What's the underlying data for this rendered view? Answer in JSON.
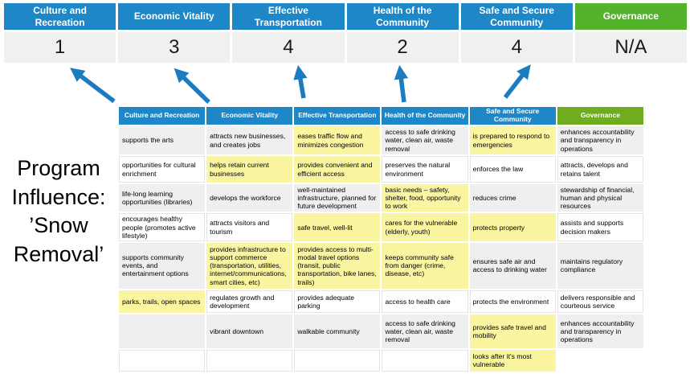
{
  "title": "Program Influence: ’Snow Removal’",
  "colors": {
    "category_blue": "#1e87c7",
    "category_green_large": "#54b22c",
    "category_green_table": "#70ac1f",
    "arrow_blue": "#1d7cc1",
    "highlight_yellow": "#faf5a0",
    "row_gray": "#efefef",
    "score_band_gray": "#f0f0f0"
  },
  "scoreboard": {
    "columns": [
      {
        "label": "Culture and Recreation",
        "score": "1",
        "bg": "#1e87c7"
      },
      {
        "label": "Economic Vitality",
        "score": "3",
        "bg": "#1e87c7"
      },
      {
        "label": "Effective Transportation",
        "score": "4",
        "bg": "#1e87c7"
      },
      {
        "label": "Health of the Community",
        "score": "2",
        "bg": "#1e87c7"
      },
      {
        "label": "Safe and Secure Community",
        "score": "4",
        "bg": "#1e87c7"
      },
      {
        "label": "Governance",
        "score": "N/A",
        "bg": "#54b22c"
      }
    ]
  },
  "matrix": {
    "headers": [
      {
        "label": "Culture and Recreation",
        "bg": "#1e87c7"
      },
      {
        "label": "Economic Vitality",
        "bg": "#1e87c7"
      },
      {
        "label": "Effective Transportation",
        "bg": "#1e87c7"
      },
      {
        "label": "Health of the Community",
        "bg": "#1e87c7"
      },
      {
        "label": "Safe and Secure Community",
        "bg": "#1e87c7"
      },
      {
        "label": "Governance",
        "bg": "#70ac1f"
      }
    ],
    "rows": [
      {
        "cells": [
          {
            "text": "supports the arts"
          },
          {
            "text": "attracts new businesses, and creates jobs"
          },
          {
            "text": "eases traffic flow and minimizes congestion",
            "highlight": true
          },
          {
            "text": "access to safe drinking water, clean air, waste removal"
          },
          {
            "text": "is prepared to respond to emergencies",
            "highlight": true
          },
          {
            "text": "enhances accountability and transparency in operations"
          }
        ]
      },
      {
        "cells": [
          {
            "text": "opportunities for cultural enrichment"
          },
          {
            "text": "helps retain current businesses",
            "highlight": true
          },
          {
            "text": "provides convenient and efficient access",
            "highlight": true
          },
          {
            "text": "preserves the natural environment"
          },
          {
            "text": "enforces the law"
          },
          {
            "text": "attracts, develops and retains talent"
          }
        ]
      },
      {
        "cells": [
          {
            "text": "life-long learning opportunities (libraries)"
          },
          {
            "text": "develops the workforce"
          },
          {
            "text": "well-maintained infrastructure, planned for future development"
          },
          {
            "text": "basic needs – safety, shelter, food, opportunity to work",
            "highlight": true
          },
          {
            "text": "reduces crime"
          },
          {
            "text": "stewardship of financial, human and physical resources"
          }
        ]
      },
      {
        "cells": [
          {
            "text": "encourages healthy people (promotes active lifestyle)"
          },
          {
            "text": "attracts visitors and tourism"
          },
          {
            "text": "safe travel, well-lit",
            "highlight": true
          },
          {
            "text": "cares for the vulnerable (elderly, youth)",
            "highlight": true
          },
          {
            "text": "protects property",
            "highlight": true
          },
          {
            "text": "assists and supports decision makers"
          }
        ]
      },
      {
        "cells": [
          {
            "text": "supports community events, and entertainment options"
          },
          {
            "text": "provides infrastructure to support commerce (transportation, utilities, internet/communications, smart cities, etc)",
            "highlight": true
          },
          {
            "text": "provides access to multi-modal travel options (transit, public transportation, bike lanes, trails)",
            "highlight": true
          },
          {
            "text": "keeps community safe from danger (crime, disease, etc)",
            "highlight": true
          },
          {
            "text": "ensures safe air and access to drinking water"
          },
          {
            "text": "maintains regulatory compliance"
          }
        ]
      },
      {
        "cells": [
          {
            "text": "parks, trails, open spaces",
            "highlight": true
          },
          {
            "text": "regulates growth and development"
          },
          {
            "text": "provides adequate parking"
          },
          {
            "text": "access to health care"
          },
          {
            "text": "protects the environment"
          },
          {
            "text": "delivers responsible and courteous service"
          }
        ]
      },
      {
        "cells": [
          {
            "text": ""
          },
          {
            "text": "vibrant downtown"
          },
          {
            "text": "walkable community"
          },
          {
            "text": "access to safe drinking water, clean air, waste removal"
          },
          {
            "text": "provides safe travel and mobility",
            "highlight": true
          },
          {
            "text": "enhances accountability and transparency in operations"
          }
        ]
      },
      {
        "cells": [
          {
            "text": ""
          },
          {
            "text": ""
          },
          {
            "text": ""
          },
          {
            "text": ""
          },
          {
            "text": "looks after it's most vulnerable",
            "highlight": true
          },
          {
            "text": "",
            "blank": true
          }
        ]
      }
    ]
  }
}
